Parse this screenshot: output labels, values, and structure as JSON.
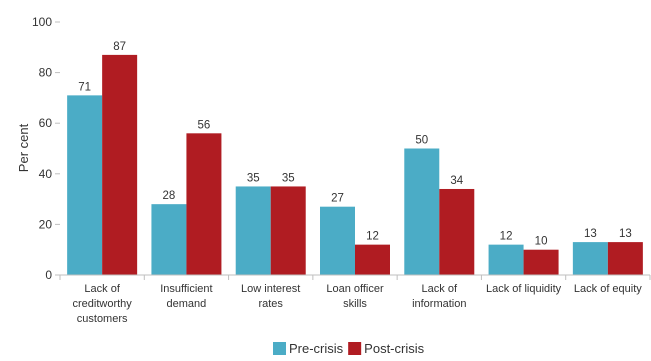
{
  "chart_data": {
    "type": "bar",
    "title": "",
    "xlabel": "",
    "ylabel": "Per cent",
    "ylim": [
      0,
      100
    ],
    "yticks": [
      0,
      20,
      40,
      60,
      80,
      100
    ],
    "grid": false,
    "legend_position": "bottom-center",
    "categories": [
      "Lack of\ncreditworthy\ncustomers",
      "Insufficient\ndemand",
      "Low interest\nrates",
      "Loan officer\nskills",
      "Lack of\ninformation",
      "Lack of liquidity",
      "Lack of equity"
    ],
    "series": [
      {
        "name": "Pre-crisis",
        "color": "#4bacc6",
        "values": [
          71,
          28,
          35,
          27,
          50,
          12,
          13
        ]
      },
      {
        "name": "Post-crisis",
        "color": "#b01c22",
        "values": [
          87,
          56,
          35,
          12,
          34,
          10,
          13
        ]
      }
    ]
  }
}
